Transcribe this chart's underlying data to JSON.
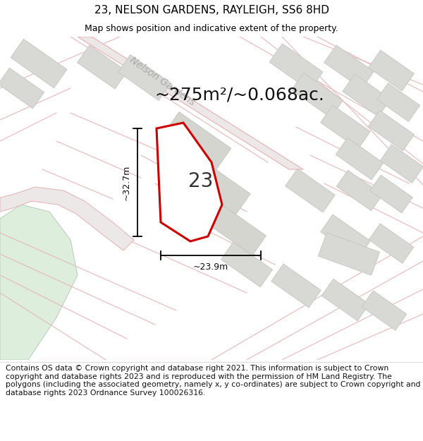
{
  "title": "23, NELSON GARDENS, RAYLEIGH, SS6 8HD",
  "subtitle": "Map shows position and indicative extent of the property.",
  "area_text": "~275m²/~0.068ac.",
  "width_label": "~23.9m",
  "height_label": "~32.7m",
  "property_number": "23",
  "footer_text": "Contains OS data © Crown copyright and database right 2021. This information is subject to Crown copyright and database rights 2023 and is reproduced with the permission of HM Land Registry. The polygons (including the associated geometry, namely x, y co-ordinates) are subject to Crown copyright and database rights 2023 Ordnance Survey 100026316.",
  "bg_color": "#ffffff",
  "map_bg": "#f2f2ee",
  "road_color": "#e8b8b8",
  "road_fill": "#f0dada",
  "plot_color": "#cc0000",
  "plot_fill": "#ffffff",
  "block_fill": "#d8d8d4",
  "block_edge": "#c8c8c4",
  "green_fill": "#ddeedd",
  "street_label_color": "#aaaaaa",
  "street_label": "Nelson Gardens",
  "title_fontsize": 11,
  "subtitle_fontsize": 9,
  "footer_fontsize": 7.8,
  "area_fontsize": 18,
  "dim_fontsize": 9,
  "num_fontsize": 20
}
